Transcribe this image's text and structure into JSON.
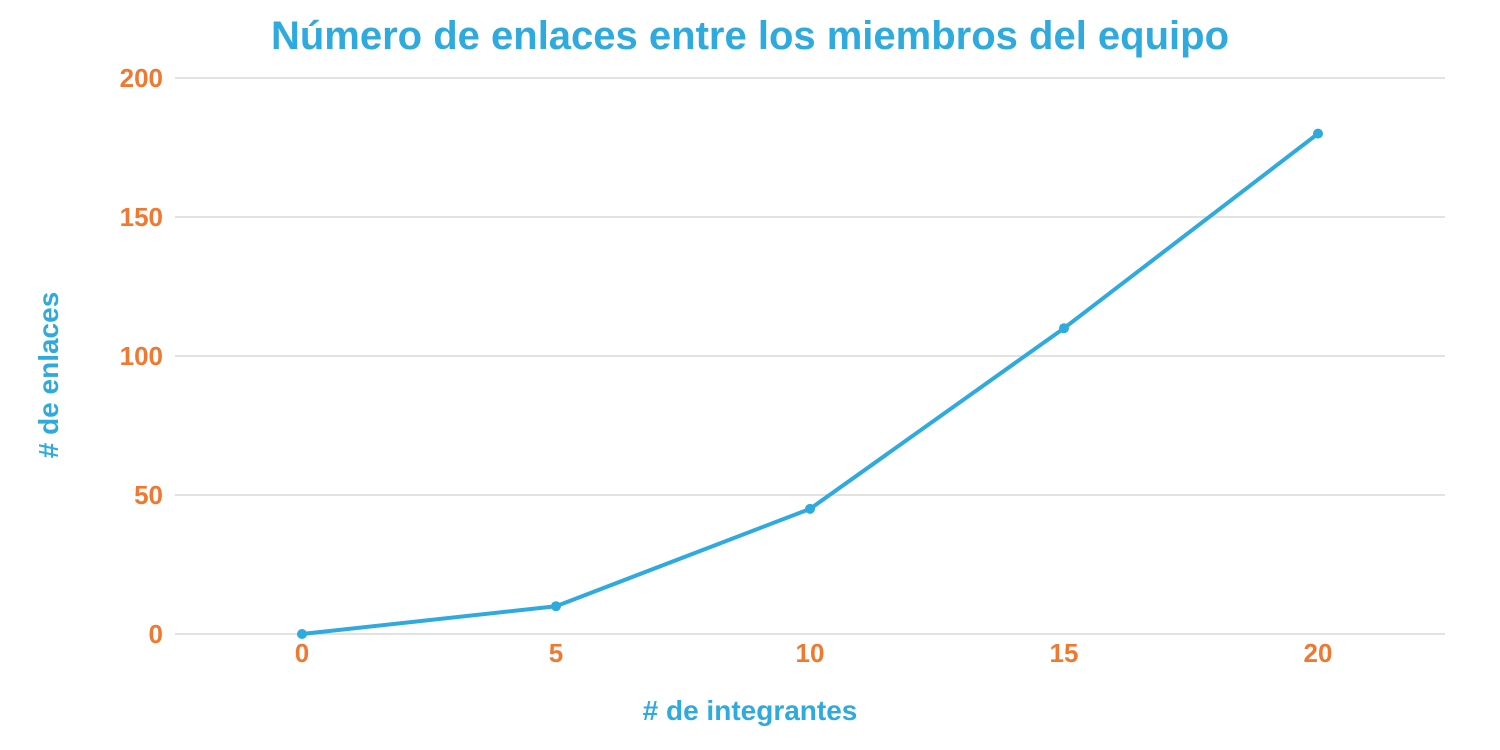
{
  "chart_data": {
    "type": "line",
    "title": "Número de enlaces entre los miembros del equipo",
    "xlabel": "# de integrantes",
    "ylabel": "# de enlaces",
    "x": [
      0,
      5,
      10,
      15,
      20
    ],
    "x_tick_labels": [
      "0",
      "5",
      "10",
      "15",
      "20"
    ],
    "y_tick_labels": [
      "0",
      "50",
      "100",
      "150",
      "200"
    ],
    "y_ticks": [
      0,
      50,
      100,
      150,
      200
    ],
    "ylim": [
      0,
      200
    ],
    "xlim": [
      -2.5,
      22.5
    ],
    "grid": true,
    "series": [
      {
        "values": [
          0,
          10,
          45,
          110,
          180
        ],
        "color": "#2eaadf"
      }
    ],
    "colors": {
      "title": "#2eaadf",
      "axis_label": "#2eaadf",
      "tick_label": "#f07830",
      "grid": "#d9d9d9"
    }
  }
}
